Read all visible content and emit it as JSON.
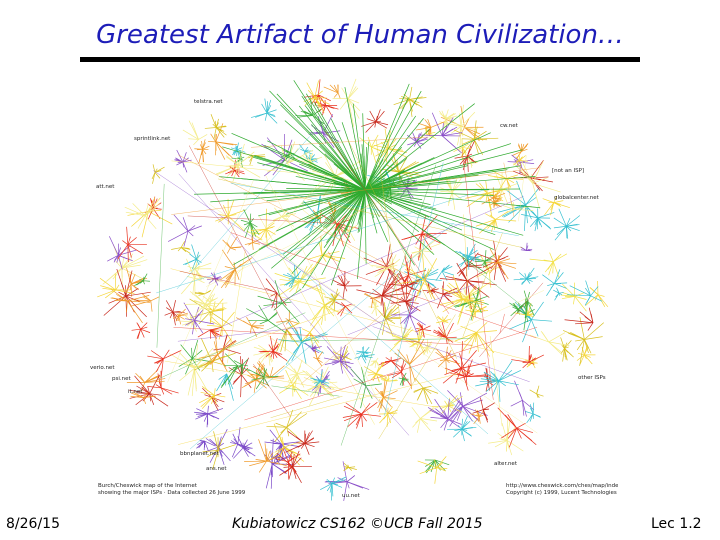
{
  "title": "Greatest Artifact of Human Civilization…",
  "map": {
    "labels": [
      "telstra.net",
      "cw.net",
      "sprintlink.net",
      "[not an ISP]",
      "att.net",
      "globalcenter.net",
      "verio.net",
      "psi.net",
      "it.net",
      "other ISPs",
      "bbnplanet.net",
      "ans.net",
      "alter.net",
      "uu.net"
    ],
    "caption_left": [
      "Burch/Cheswick map of the Internet",
      "showing the major ISPs · Data collected 26 June 1999"
    ],
    "caption_right": [
      "http://www.cheswick.com/ches/map/index.html",
      "Copyright (c) 1999, Lucent Technologies"
    ]
  },
  "footer": {
    "date": "8/26/15",
    "course": "Kubiatowicz CS162 ©UCB Fall 2015",
    "lecture": "Lec 1.2"
  }
}
